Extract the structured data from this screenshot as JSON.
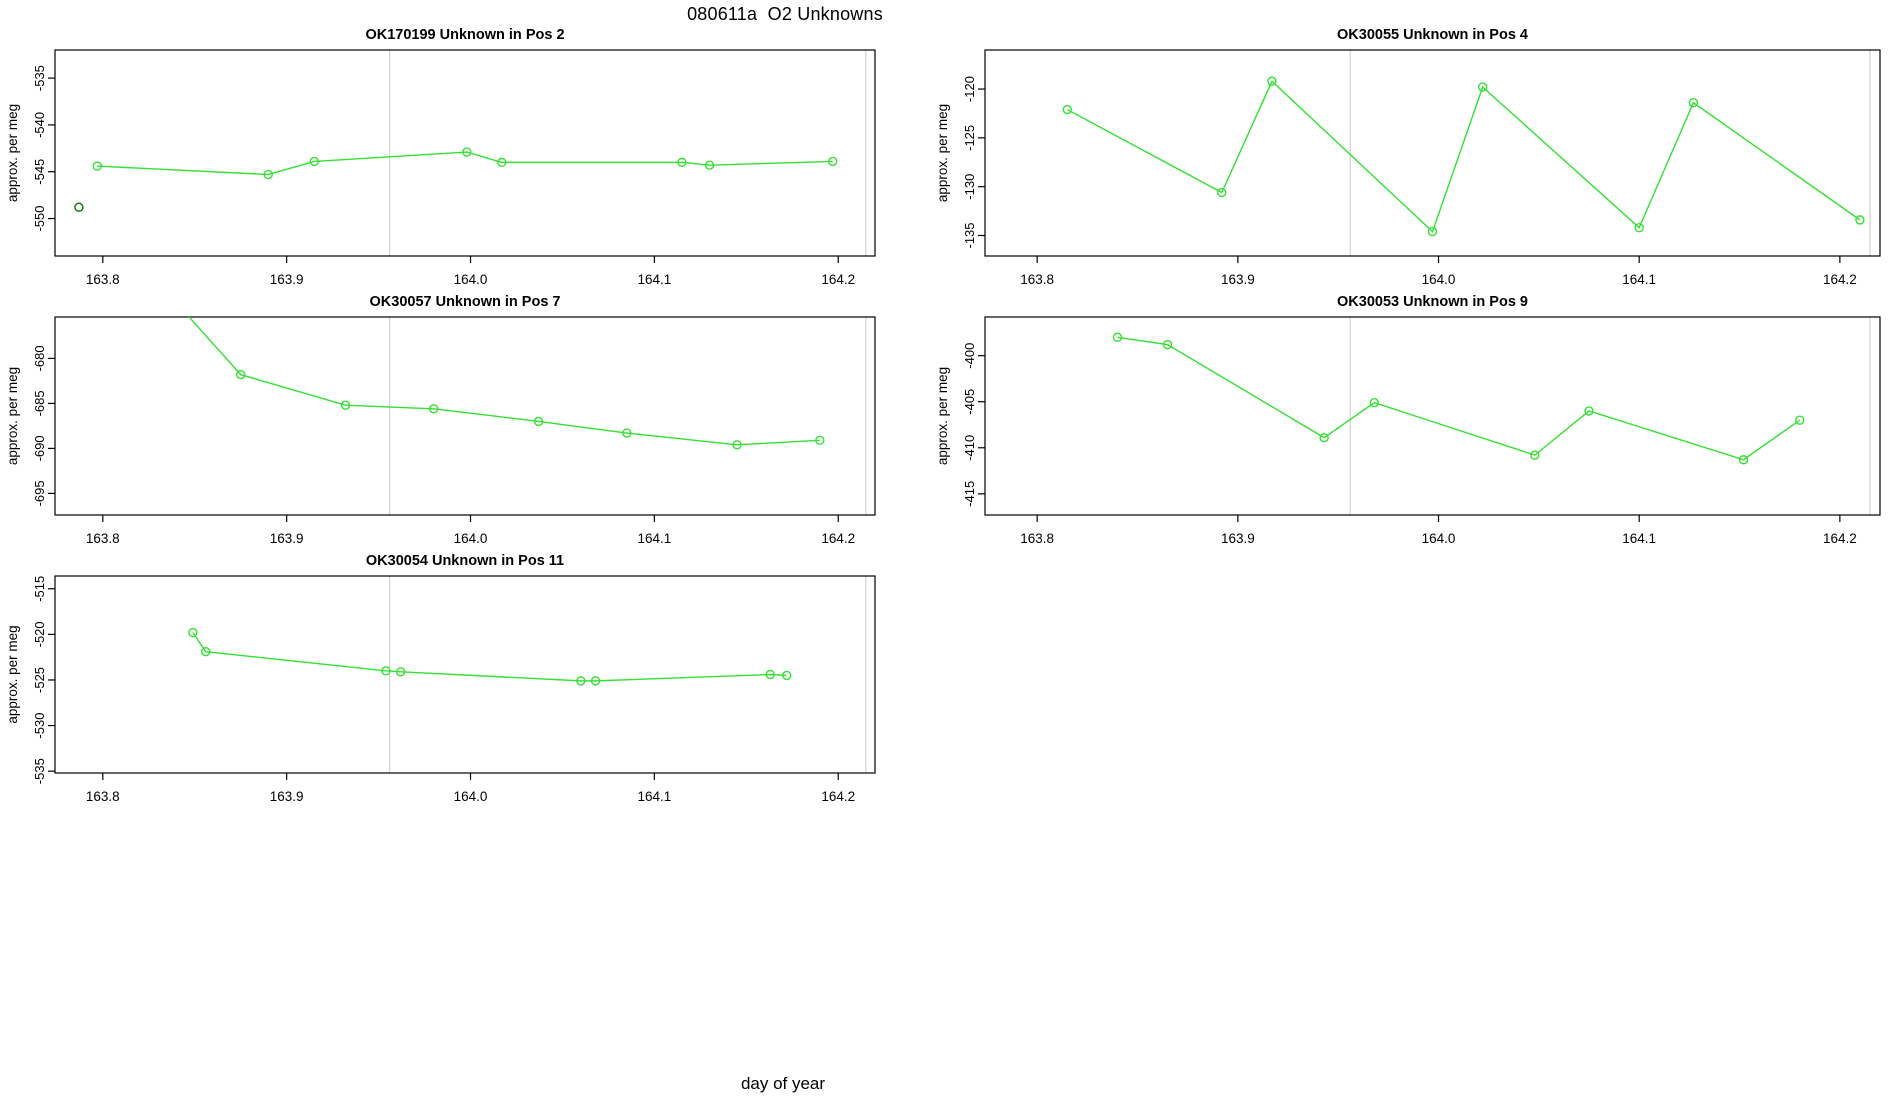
{
  "figure": {
    "title": "080611a  O2 Unknowns",
    "xlabel": "day of year",
    "ylabel": "approx. per meg",
    "colors": {
      "series_green": "#33e033",
      "outlier_dark_green": "#117711",
      "reference_line_gray": "#d4d4d4",
      "axis_black": "#000000",
      "background": "#ffffff"
    }
  },
  "chart_data": [
    {
      "type": "line",
      "title": "OK170199   Unknown in Pos 2",
      "sample_id": "OK170199",
      "position_label": "Unknown in Pos 2",
      "ylabel": "approx. per meg",
      "x": [
        163.797,
        163.89,
        163.915,
        163.998,
        164.017,
        164.115,
        164.13,
        164.197
      ],
      "y": [
        -544.4,
        -545.3,
        -543.9,
        -542.9,
        -544.0,
        -544.0,
        -544.3,
        -543.9
      ],
      "isolated_points": [
        {
          "x": 163.787,
          "y": -548.8
        }
      ],
      "xticks": [
        163.8,
        163.9,
        164.0,
        164.1,
        164.2
      ],
      "xlim": [
        163.774,
        164.22
      ],
      "yticks": [
        -535,
        -540,
        -545,
        -550
      ],
      "ylim": [
        -554.0,
        -532.0
      ],
      "reference_lines_x": [
        163.956,
        164.215
      ],
      "grid": false,
      "legend": "none"
    },
    {
      "type": "line",
      "title": "OK30055   Unknown in Pos 4",
      "sample_id": "OK30055",
      "position_label": "Unknown in Pos 4",
      "ylabel": "approx. per meg",
      "x": [
        163.815,
        163.892,
        163.917,
        163.997,
        164.022,
        164.1,
        164.127,
        164.21
      ],
      "y": [
        -122.1,
        -130.6,
        -119.2,
        -134.6,
        -119.8,
        -134.2,
        -121.4,
        -133.4
      ],
      "isolated_points": [],
      "xticks": [
        163.8,
        163.9,
        164.0,
        164.1,
        164.2
      ],
      "xlim": [
        163.774,
        164.22
      ],
      "yticks": [
        -120,
        -125,
        -130,
        -135
      ],
      "ylim": [
        -137.1,
        -116.0
      ],
      "reference_lines_x": [
        163.956,
        164.215
      ],
      "grid": false,
      "legend": "none"
    },
    {
      "type": "line",
      "title": "OK30057   Unknown in Pos 7",
      "sample_id": "OK30057",
      "position_label": "Unknown in Pos 7",
      "ylabel": "approx. per meg",
      "x": [
        163.843,
        163.875,
        163.932,
        163.98,
        164.037,
        164.085,
        164.145,
        164.19
      ],
      "y": [
        -674.5,
        -681.8,
        -685.2,
        -685.6,
        -687.0,
        -688.3,
        -689.6,
        -689.1
      ],
      "isolated_points": [],
      "xticks": [
        163.8,
        163.9,
        164.0,
        164.1,
        164.2
      ],
      "xlim": [
        163.774,
        164.22
      ],
      "yticks": [
        -680,
        -685,
        -690,
        -695
      ],
      "ylim": [
        -697.4,
        -675.4
      ],
      "reference_lines_x": [
        163.956,
        164.215
      ],
      "grid": false,
      "legend": "none"
    },
    {
      "type": "line",
      "title": "OK30053   Unknown in Pos 9",
      "sample_id": "OK30053",
      "position_label": "Unknown in Pos 9",
      "ylabel": "approx. per meg",
      "x": [
        163.84,
        163.865,
        163.943,
        163.968,
        164.048,
        164.075,
        164.152,
        164.18
      ],
      "y": [
        -398.0,
        -398.8,
        -408.9,
        -405.1,
        -410.8,
        -406.0,
        -411.3,
        -407.0
      ],
      "isolated_points": [],
      "xticks": [
        163.8,
        163.9,
        164.0,
        164.1,
        164.2
      ],
      "xlim": [
        163.774,
        164.22
      ],
      "yticks": [
        -400,
        -405,
        -410,
        -415
      ],
      "ylim": [
        -417.3,
        -395.8
      ],
      "reference_lines_x": [
        163.956,
        164.215
      ],
      "grid": false,
      "legend": "none"
    },
    {
      "type": "line",
      "title": "OK30054   Unknown in Pos 11",
      "sample_id": "OK30054",
      "position_label": "Unknown in Pos 11",
      "ylabel": "approx. per meg",
      "x": [
        163.849,
        163.856,
        163.954,
        163.962,
        164.06,
        164.068,
        164.163,
        164.172
      ],
      "y": [
        -519.8,
        -521.9,
        -524.0,
        -524.1,
        -525.1,
        -525.1,
        -524.4,
        -524.5
      ],
      "isolated_points": [],
      "xticks": [
        163.8,
        163.9,
        164.0,
        164.1,
        164.2
      ],
      "xlim": [
        163.774,
        164.22
      ],
      "yticks": [
        -515,
        -520,
        -525,
        -530,
        -535
      ],
      "ylim": [
        -535.2,
        -513.6
      ],
      "reference_lines_x": [
        163.956,
        164.215
      ],
      "grid": false,
      "legend": "none"
    }
  ]
}
